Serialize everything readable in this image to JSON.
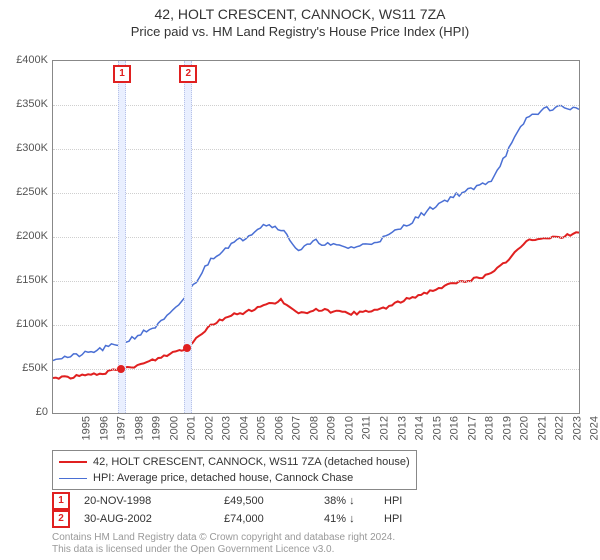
{
  "title": {
    "main": "42, HOLT CRESCENT, CANNOCK, WS11 7ZA",
    "sub": "Price paid vs. HM Land Registry's House Price Index (HPI)"
  },
  "chart": {
    "type": "line",
    "background_color": "#ffffff",
    "grid_color": "#cfcfcf",
    "border_color": "#888888",
    "x": {
      "min": 1995,
      "max": 2025,
      "ticks": [
        1995,
        1996,
        1997,
        1998,
        1999,
        2000,
        2001,
        2002,
        2003,
        2004,
        2005,
        2006,
        2007,
        2008,
        2009,
        2010,
        2011,
        2012,
        2013,
        2014,
        2015,
        2016,
        2017,
        2018,
        2019,
        2020,
        2021,
        2022,
        2023,
        2024,
        2025
      ]
    },
    "y": {
      "min": 0,
      "max": 400000,
      "ticks": [
        0,
        50000,
        100000,
        150000,
        200000,
        250000,
        300000,
        350000,
        400000
      ],
      "tick_labels": [
        "£0",
        "£50K",
        "£100K",
        "£150K",
        "£200K",
        "£250K",
        "£300K",
        "£350K",
        "£400K"
      ]
    },
    "sale_bands": [
      {
        "year": 1998.88,
        "width_years": 0.35,
        "color": "#e9efff",
        "border": "#b7c2e8"
      },
      {
        "year": 2002.66,
        "width_years": 0.35,
        "color": "#e9efff",
        "border": "#b7c2e8"
      }
    ],
    "sale_markers": [
      {
        "label": "1",
        "color": "#e02020",
        "year": 1998.88,
        "price": 49500
      },
      {
        "label": "2",
        "color": "#e02020",
        "year": 2002.66,
        "price": 74000
      }
    ],
    "series": [
      {
        "name": "property",
        "label": "42, HOLT CRESCENT, CANNOCK, WS11 7ZA (detached house)",
        "color": "#e02020",
        "line_width": 2,
        "points": [
          [
            1995,
            40000
          ],
          [
            1996,
            41000
          ],
          [
            1997,
            43000
          ],
          [
            1998,
            46000
          ],
          [
            1998.88,
            49500
          ],
          [
            2000,
            55000
          ],
          [
            2001,
            62000
          ],
          [
            2002,
            70000
          ],
          [
            2002.66,
            74000
          ],
          [
            2003,
            82000
          ],
          [
            2004,
            100000
          ],
          [
            2005,
            110000
          ],
          [
            2006,
            115000
          ],
          [
            2007,
            122000
          ],
          [
            2008,
            128000
          ],
          [
            2009,
            112000
          ],
          [
            2010,
            118000
          ],
          [
            2011,
            115000
          ],
          [
            2012,
            113000
          ],
          [
            2013,
            115000
          ],
          [
            2014,
            120000
          ],
          [
            2015,
            128000
          ],
          [
            2016,
            135000
          ],
          [
            2017,
            142000
          ],
          [
            2018,
            148000
          ],
          [
            2019,
            152000
          ],
          [
            2020,
            158000
          ],
          [
            2021,
            175000
          ],
          [
            2022,
            195000
          ],
          [
            2023,
            200000
          ],
          [
            2024,
            200000
          ],
          [
            2025,
            205000
          ]
        ]
      },
      {
        "name": "hpi",
        "label": "HPI: Average price, detached house, Cannock Chase",
        "color": "#4a6fd4",
        "line_width": 1.5,
        "points": [
          [
            1995,
            62000
          ],
          [
            1996,
            64000
          ],
          [
            1997,
            68000
          ],
          [
            1998,
            74000
          ],
          [
            1999,
            80000
          ],
          [
            2000,
            90000
          ],
          [
            2001,
            100000
          ],
          [
            2002,
            118000
          ],
          [
            2003,
            145000
          ],
          [
            2004,
            175000
          ],
          [
            2005,
            190000
          ],
          [
            2006,
            200000
          ],
          [
            2007,
            215000
          ],
          [
            2008,
            210000
          ],
          [
            2009,
            185000
          ],
          [
            2010,
            195000
          ],
          [
            2011,
            190000
          ],
          [
            2012,
            188000
          ],
          [
            2013,
            192000
          ],
          [
            2014,
            200000
          ],
          [
            2015,
            212000
          ],
          [
            2016,
            225000
          ],
          [
            2017,
            238000
          ],
          [
            2018,
            248000
          ],
          [
            2019,
            255000
          ],
          [
            2020,
            265000
          ],
          [
            2021,
            300000
          ],
          [
            2022,
            335000
          ],
          [
            2023,
            345000
          ],
          [
            2024,
            348000
          ],
          [
            2025,
            345000
          ]
        ]
      }
    ]
  },
  "legend": {
    "items": [
      {
        "series": "property"
      },
      {
        "series": "hpi"
      }
    ]
  },
  "sales_table": {
    "rows": [
      {
        "marker": "1",
        "marker_color": "#e02020",
        "date": "20-NOV-1998",
        "price": "£49,500",
        "pct": "38%",
        "arrow": "↓",
        "vs": "HPI"
      },
      {
        "marker": "2",
        "marker_color": "#e02020",
        "date": "30-AUG-2002",
        "price": "£74,000",
        "pct": "41%",
        "arrow": "↓",
        "vs": "HPI"
      }
    ]
  },
  "footer": {
    "line1": "Contains HM Land Registry data © Crown copyright and database right 2024.",
    "line2": "This data is licensed under the Open Government Licence v3.0."
  },
  "style": {
    "font_family": "Arial, Helvetica, sans-serif",
    "title_fontsize": 14,
    "subtitle_fontsize": 13,
    "axis_label_fontsize": 11,
    "legend_fontsize": 11,
    "footer_fontsize": 10,
    "footer_color": "#999999"
  }
}
